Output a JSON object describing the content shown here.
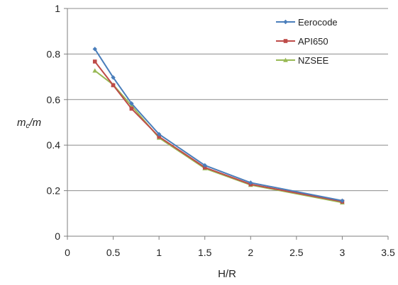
{
  "chart_data": {
    "type": "line",
    "title": "",
    "xlabel": "H/R",
    "ylabel_main": "m",
    "ylabel_sub": "c",
    "ylabel_tail": "/m",
    "xlim": [
      0,
      3.5
    ],
    "ylim": [
      0,
      1
    ],
    "xticks": [
      "0",
      "0.5",
      "1",
      "1.5",
      "2",
      "2.5",
      "3",
      "3.5"
    ],
    "yticks": [
      "0",
      "0.2",
      "0.4",
      "0.6",
      "0.8",
      "1"
    ],
    "grid": "horizontal",
    "legend_position": "top-right",
    "x": [
      0.3,
      0.5,
      0.7,
      1,
      1.5,
      2,
      3
    ],
    "series": [
      {
        "name": "Eerocode",
        "color": "#4A7EBB",
        "marker": "diamond",
        "values": [
          0.822,
          0.697,
          0.583,
          0.448,
          0.311,
          0.235,
          0.156
        ]
      },
      {
        "name": "API650",
        "color": "#BE4B48",
        "marker": "square",
        "values": [
          0.767,
          0.663,
          0.56,
          0.437,
          0.302,
          0.228,
          0.152
        ]
      },
      {
        "name": "NZSEE",
        "color": "#98B954",
        "marker": "triangle",
        "values": [
          0.727,
          0.665,
          0.573,
          0.432,
          0.298,
          0.225,
          0.148
        ]
      }
    ]
  }
}
